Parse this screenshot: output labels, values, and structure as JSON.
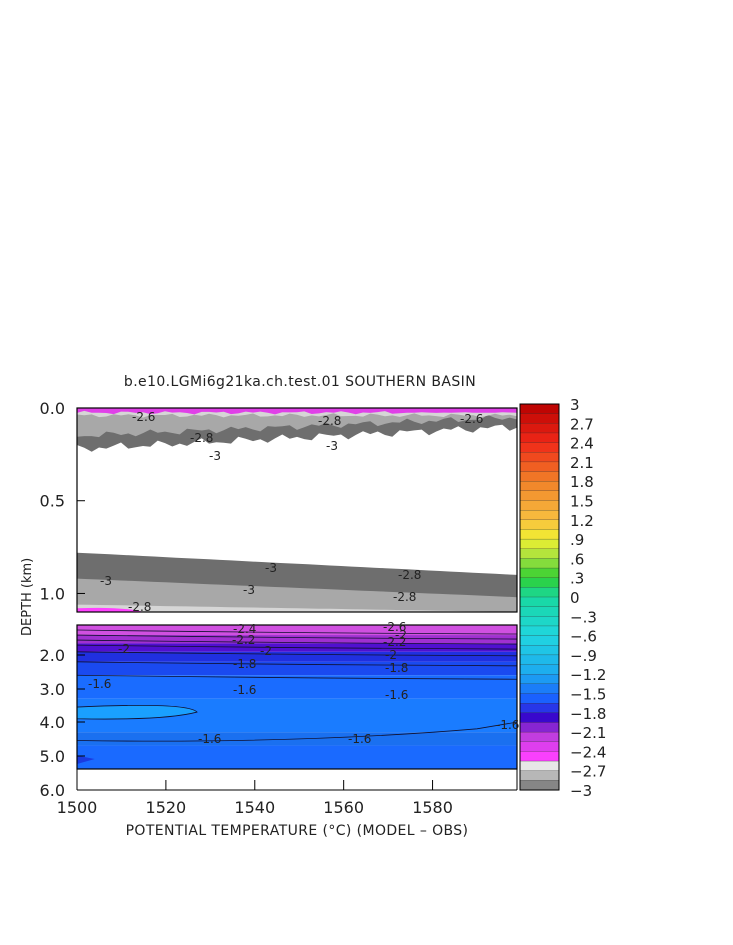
{
  "chart_data": {
    "type": "heatmap",
    "title": "b.e10.LGMi6g21ka.ch.test.01 SOUTHERN BASIN",
    "xlabel": "POTENTIAL TEMPERATURE (°C) (MODEL – OBS)",
    "ylabel": "DEPTH (km)",
    "x_ticks": [
      "1500",
      "1520",
      "1540",
      "1560",
      "1580"
    ],
    "xlim": [
      1500,
      1599
    ],
    "panels": [
      {
        "name": "upper",
        "ylim": [
          0.0,
          1.1
        ],
        "y_ticks": [
          "0.0",
          "0.5",
          "1.0"
        ],
        "contour_labels": [
          "-2.6",
          "-2.8",
          "-2.8",
          "-3",
          "-3",
          "-2.8",
          "-3",
          "-3",
          "-3",
          "-2.8",
          "-2.8",
          "-2.6"
        ]
      },
      {
        "name": "lower",
        "ylim": [
          1.1,
          5.4
        ],
        "y_ticks": [
          "2.0",
          "3.0",
          "4.0",
          "5.0",
          "6.0"
        ],
        "contour_labels": [
          "-2.4",
          "-2.2",
          "-2.6",
          "-2.2",
          "-2",
          "-2",
          "-2",
          "-2",
          "-1.8",
          "-1.8",
          "-1.6",
          "-1.6",
          "-1.6",
          "-1.6",
          "-1.6",
          "-1.6"
        ]
      }
    ],
    "colorbar": {
      "min": -3,
      "max": 3,
      "step": 0.15,
      "labels": [
        "3",
        "2.7",
        "2.4",
        "2.1",
        "1.8",
        "1.5",
        "1.2",
        ".9",
        ".6",
        ".3",
        "0",
        "-.3",
        "-.6",
        "-.9",
        "-1.2",
        "-1.5",
        "-1.8",
        "-2.1",
        "-2.4",
        "-2.7",
        "-3"
      ]
    }
  }
}
